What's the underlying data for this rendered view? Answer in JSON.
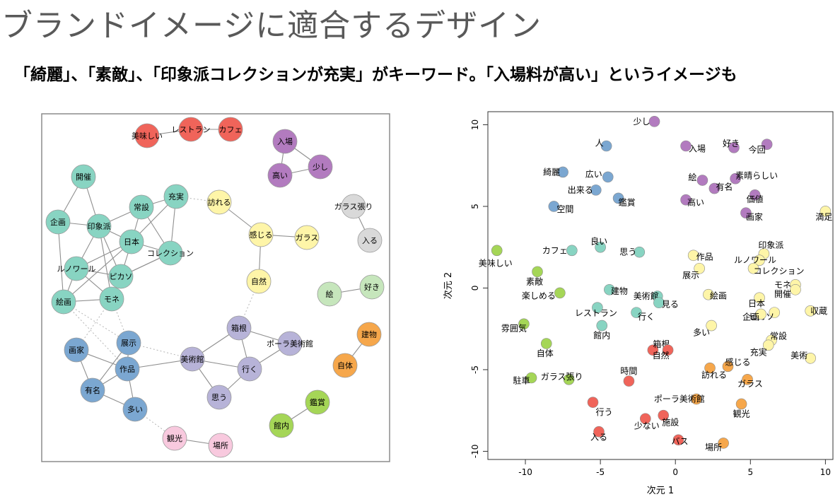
{
  "slide": {
    "title": "ブランドイメージに適合するデザイン",
    "subtitle": "「綺麗」、「素敵」、「印象派コレクションが充実」がキーワード。「入場料が高い」というイメージも"
  },
  "colors": {
    "red": "#f0645a",
    "purple": "#b27bbf",
    "teal": "#88d4c2",
    "yellow": "#fef5a8",
    "gray": "#d9d9d9",
    "lightgreen": "#c6e6bc",
    "orange": "#f6a74b",
    "blue": "#7ba7d1",
    "lavender": "#b7b3d8",
    "pink": "#f8c9de",
    "green": "#a5d657"
  },
  "chart_data": [
    {
      "type": "network",
      "nodes": [
        {
          "id": "美味しい",
          "group": "red"
        },
        {
          "id": "レストラン",
          "group": "red"
        },
        {
          "id": "カフェ",
          "group": "red"
        },
        {
          "id": "入場",
          "group": "purple"
        },
        {
          "id": "高い",
          "group": "purple"
        },
        {
          "id": "少し",
          "group": "purple"
        },
        {
          "id": "ガラス張り",
          "group": "gray"
        },
        {
          "id": "入る",
          "group": "gray"
        },
        {
          "id": "開催",
          "group": "teal"
        },
        {
          "id": "企画",
          "group": "teal"
        },
        {
          "id": "印象派",
          "group": "teal"
        },
        {
          "id": "常設",
          "group": "teal"
        },
        {
          "id": "充実",
          "group": "teal"
        },
        {
          "id": "日本",
          "group": "teal"
        },
        {
          "id": "コレクション",
          "group": "teal"
        },
        {
          "id": "ルノワール",
          "group": "teal"
        },
        {
          "id": "ピカソ",
          "group": "teal"
        },
        {
          "id": "絵画",
          "group": "teal"
        },
        {
          "id": "モネ",
          "group": "teal"
        },
        {
          "id": "訪れる",
          "group": "yellow"
        },
        {
          "id": "感じる",
          "group": "yellow"
        },
        {
          "id": "ガラス",
          "group": "yellow"
        },
        {
          "id": "自然",
          "group": "yellow"
        },
        {
          "id": "絵",
          "group": "lightgreen"
        },
        {
          "id": "好き",
          "group": "lightgreen"
        },
        {
          "id": "建物",
          "group": "orange"
        },
        {
          "id": "自体",
          "group": "orange"
        },
        {
          "id": "画家",
          "group": "blue"
        },
        {
          "id": "展示",
          "group": "blue"
        },
        {
          "id": "作品",
          "group": "blue"
        },
        {
          "id": "有名",
          "group": "blue"
        },
        {
          "id": "多い",
          "group": "blue"
        },
        {
          "id": "箱根",
          "group": "lavender"
        },
        {
          "id": "ポーラ美術館",
          "group": "lavender"
        },
        {
          "id": "美術館",
          "group": "lavender"
        },
        {
          "id": "行く",
          "group": "lavender"
        },
        {
          "id": "思う",
          "group": "lavender"
        },
        {
          "id": "観光",
          "group": "pink"
        },
        {
          "id": "場所",
          "group": "pink"
        },
        {
          "id": "鑑賞",
          "group": "green"
        },
        {
          "id": "館内",
          "group": "green"
        }
      ],
      "edges": [
        [
          "美味しい",
          "レストラン"
        ],
        [
          "レストラン",
          "カフェ"
        ],
        [
          "入場",
          "少し"
        ],
        [
          "入場",
          "高い"
        ],
        [
          "高い",
          "少し"
        ],
        [
          "ガラス張り",
          "入る"
        ],
        [
          "絵",
          "好き"
        ],
        [
          "建物",
          "自体"
        ],
        [
          "観光",
          "場所"
        ],
        [
          "鑑賞",
          "館内"
        ],
        [
          "開催",
          "企画"
        ],
        [
          "開催",
          "印象派"
        ],
        [
          "企画",
          "印象派"
        ],
        [
          "企画",
          "絵画"
        ],
        [
          "印象派",
          "常設"
        ],
        [
          "印象派",
          "日本"
        ],
        [
          "印象派",
          "ルノワール"
        ],
        [
          "印象派",
          "モネ"
        ],
        [
          "印象派",
          "ピカソ"
        ],
        [
          "常設",
          "充実"
        ],
        [
          "常設",
          "日本"
        ],
        [
          "常設",
          "コレクション"
        ],
        [
          "充実",
          "日本"
        ],
        [
          "充実",
          "コレクション"
        ],
        [
          "日本",
          "コレクション"
        ],
        [
          "日本",
          "ルノワール"
        ],
        [
          "日本",
          "ピカソ"
        ],
        [
          "日本",
          "絵画"
        ],
        [
          "コレクション",
          "ピカソ"
        ],
        [
          "ルノワール",
          "ピカソ"
        ],
        [
          "ルノワール",
          "モネ"
        ],
        [
          "ルノワール",
          "絵画"
        ],
        [
          "ピカソ",
          "モネ"
        ],
        [
          "ピカソ",
          "コレクション"
        ],
        [
          "絵画",
          "モネ"
        ],
        [
          "訪れる",
          "感じる"
        ],
        [
          "感じる",
          "ガラス"
        ],
        [
          "感じる",
          "自然"
        ],
        [
          "画家",
          "作品"
        ],
        [
          "画家",
          "有名"
        ],
        [
          "展示",
          "作品"
        ],
        [
          "展示",
          "有名"
        ],
        [
          "作品",
          "有名"
        ],
        [
          "作品",
          "多い"
        ],
        [
          "有名",
          "多い"
        ],
        [
          "箱根",
          "ポーラ美術館"
        ],
        [
          "箱根",
          "美術館"
        ],
        [
          "箱根",
          "行く"
        ],
        [
          "ポーラ美術館",
          "行く"
        ],
        [
          "美術館",
          "行く"
        ],
        [
          "美術館",
          "思う"
        ],
        [
          "行く",
          "思う"
        ],
        [
          "美術館",
          "作品"
        ]
      ],
      "dashed_edges": [
        [
          "充実",
          "訪れる"
        ],
        [
          "箱根",
          "自然"
        ],
        [
          "多い",
          "観光"
        ],
        [
          "美術館",
          "展示"
        ],
        [
          "絵画",
          "展示"
        ],
        [
          "モネ",
          "画家"
        ],
        [
          "モネ",
          "展示"
        ],
        [
          "絵画",
          "作品"
        ]
      ]
    },
    {
      "type": "scatter",
      "xlabel": "次元 1",
      "ylabel": "次元 2",
      "xlim": [
        -12.5,
        10.5
      ],
      "ylim": [
        -10.5,
        10.8
      ],
      "xticks": [
        -10,
        -5,
        0,
        5,
        10
      ],
      "yticks": [
        -10,
        -5,
        0,
        5,
        10
      ],
      "points": [
        {
          "label": "少し",
          "x": -1.4,
          "y": 10.2,
          "group": "purple"
        },
        {
          "label": "人",
          "x": -4.6,
          "y": 8.7,
          "group": "blue"
        },
        {
          "label": "入場",
          "x": 0.7,
          "y": 8.7,
          "group": "purple"
        },
        {
          "label": "好き",
          "x": 3.9,
          "y": 8.6,
          "group": "purple"
        },
        {
          "label": "今回",
          "x": 6.1,
          "y": 8.8,
          "group": "purple"
        },
        {
          "label": "綺麗",
          "x": -7.5,
          "y": 7.1,
          "group": "blue"
        },
        {
          "label": "広い",
          "x": -4.5,
          "y": 6.8,
          "group": "blue"
        },
        {
          "label": "絵",
          "x": 1.8,
          "y": 6.6,
          "group": "purple"
        },
        {
          "label": "素晴らしい",
          "x": 4.0,
          "y": 6.7,
          "group": "purple"
        },
        {
          "label": "有名",
          "x": 2.6,
          "y": 6.1,
          "group": "purple"
        },
        {
          "label": "出来る",
          "x": -5.3,
          "y": 6.0,
          "group": "blue"
        },
        {
          "label": "鑑賞",
          "x": -3.8,
          "y": 5.5,
          "group": "blue"
        },
        {
          "label": "高い",
          "x": 0.7,
          "y": 5.4,
          "group": "purple"
        },
        {
          "label": "価値",
          "x": 5.3,
          "y": 5.7,
          "group": "purple"
        },
        {
          "label": "空間",
          "x": -8.1,
          "y": 5.0,
          "group": "blue"
        },
        {
          "label": "画家",
          "x": 4.7,
          "y": 4.6,
          "group": "purple"
        },
        {
          "label": "満足",
          "x": 10.0,
          "y": 4.7,
          "group": "yellow"
        },
        {
          "label": "美味しい",
          "x": -11.9,
          "y": 2.3,
          "group": "green"
        },
        {
          "label": "カフェ",
          "x": -6.9,
          "y": 2.3,
          "group": "teal"
        },
        {
          "label": "良い",
          "x": -5.0,
          "y": 2.5,
          "group": "teal"
        },
        {
          "label": "思う",
          "x": -2.4,
          "y": 2.2,
          "group": "teal"
        },
        {
          "label": "印象派",
          "x": 5.9,
          "y": 2.1,
          "group": "yellow"
        },
        {
          "label": "作品",
          "x": 1.2,
          "y": 2.0,
          "group": "yellow"
        },
        {
          "label": "ルノワール",
          "x": 5.6,
          "y": 1.7,
          "group": "yellow"
        },
        {
          "label": "コレクション",
          "x": 5.2,
          "y": 1.2,
          "group": "yellow"
        },
        {
          "label": "展示",
          "x": 1.6,
          "y": 1.2,
          "group": "yellow"
        },
        {
          "label": "素敵",
          "x": -9.2,
          "y": 1.0,
          "group": "green"
        },
        {
          "label": "モネ",
          "x": 8.0,
          "y": 0.2,
          "group": "yellow"
        },
        {
          "label": "楽しめる",
          "x": -7.7,
          "y": -0.3,
          "group": "green"
        },
        {
          "label": "建物",
          "x": -4.4,
          "y": -0.1,
          "group": "teal"
        },
        {
          "label": "絵画",
          "x": 2.2,
          "y": -0.4,
          "group": "yellow"
        },
        {
          "label": "日本",
          "x": 5.6,
          "y": -0.6,
          "group": "yellow"
        },
        {
          "label": "開催",
          "x": 8.0,
          "y": -0.1,
          "group": "yellow"
        },
        {
          "label": "美術館",
          "x": -1.2,
          "y": -0.5,
          "group": "teal"
        },
        {
          "label": "見る",
          "x": -1.1,
          "y": -0.9,
          "group": "teal"
        },
        {
          "label": "レストラン",
          "x": -5.2,
          "y": -1.2,
          "group": "teal"
        },
        {
          "label": "行く",
          "x": -2.6,
          "y": -1.5,
          "group": "teal"
        },
        {
          "label": "ピカソ",
          "x": 6.6,
          "y": -1.5,
          "group": "yellow"
        },
        {
          "label": "収蔵",
          "x": 9.0,
          "y": -1.4,
          "group": "yellow"
        },
        {
          "label": "企画",
          "x": 5.7,
          "y": -1.6,
          "group": "yellow"
        },
        {
          "label": "雰囲気",
          "x": -10.1,
          "y": -2.2,
          "group": "green"
        },
        {
          "label": "館内",
          "x": -4.9,
          "y": -2.3,
          "group": "teal"
        },
        {
          "label": "多い",
          "x": 2.4,
          "y": -2.3,
          "group": "yellow"
        },
        {
          "label": "常設",
          "x": 6.4,
          "y": -3.2,
          "group": "yellow"
        },
        {
          "label": "自体",
          "x": -8.6,
          "y": -3.4,
          "group": "green"
        },
        {
          "label": "箱根",
          "x": -1.5,
          "y": -3.8,
          "group": "red"
        },
        {
          "label": "自然",
          "x": -0.5,
          "y": -3.8,
          "group": "red"
        },
        {
          "label": "充実",
          "x": 6.2,
          "y": -3.5,
          "group": "yellow"
        },
        {
          "label": "美術",
          "x": 9.0,
          "y": -4.3,
          "group": "yellow"
        },
        {
          "label": "感じる",
          "x": 3.5,
          "y": -4.8,
          "group": "orange"
        },
        {
          "label": "訪れる",
          "x": 2.3,
          "y": -4.9,
          "group": "orange"
        },
        {
          "label": "駐車",
          "x": -9.6,
          "y": -5.5,
          "group": "green"
        },
        {
          "label": "ガラス張り",
          "x": -7.1,
          "y": -5.6,
          "group": "green"
        },
        {
          "label": "時間",
          "x": -3.1,
          "y": -5.7,
          "group": "red"
        },
        {
          "label": "ガラス",
          "x": 4.8,
          "y": -5.6,
          "group": "orange"
        },
        {
          "label": "ポーラ美術館",
          "x": 1.4,
          "y": -6.8,
          "group": "orange"
        },
        {
          "label": "行う",
          "x": -5.5,
          "y": -7.0,
          "group": "red"
        },
        {
          "label": "観光",
          "x": 4.4,
          "y": -7.1,
          "group": "orange"
        },
        {
          "label": "施設",
          "x": -0.8,
          "y": -7.8,
          "group": "red"
        },
        {
          "label": "少ない",
          "x": -2.0,
          "y": -8.0,
          "group": "red"
        },
        {
          "label": "入る",
          "x": -5.1,
          "y": -8.8,
          "group": "red"
        },
        {
          "label": "バス",
          "x": 0.2,
          "y": -9.3,
          "group": "red"
        },
        {
          "label": "場所",
          "x": 3.2,
          "y": -9.5,
          "group": "orange"
        }
      ]
    }
  ]
}
